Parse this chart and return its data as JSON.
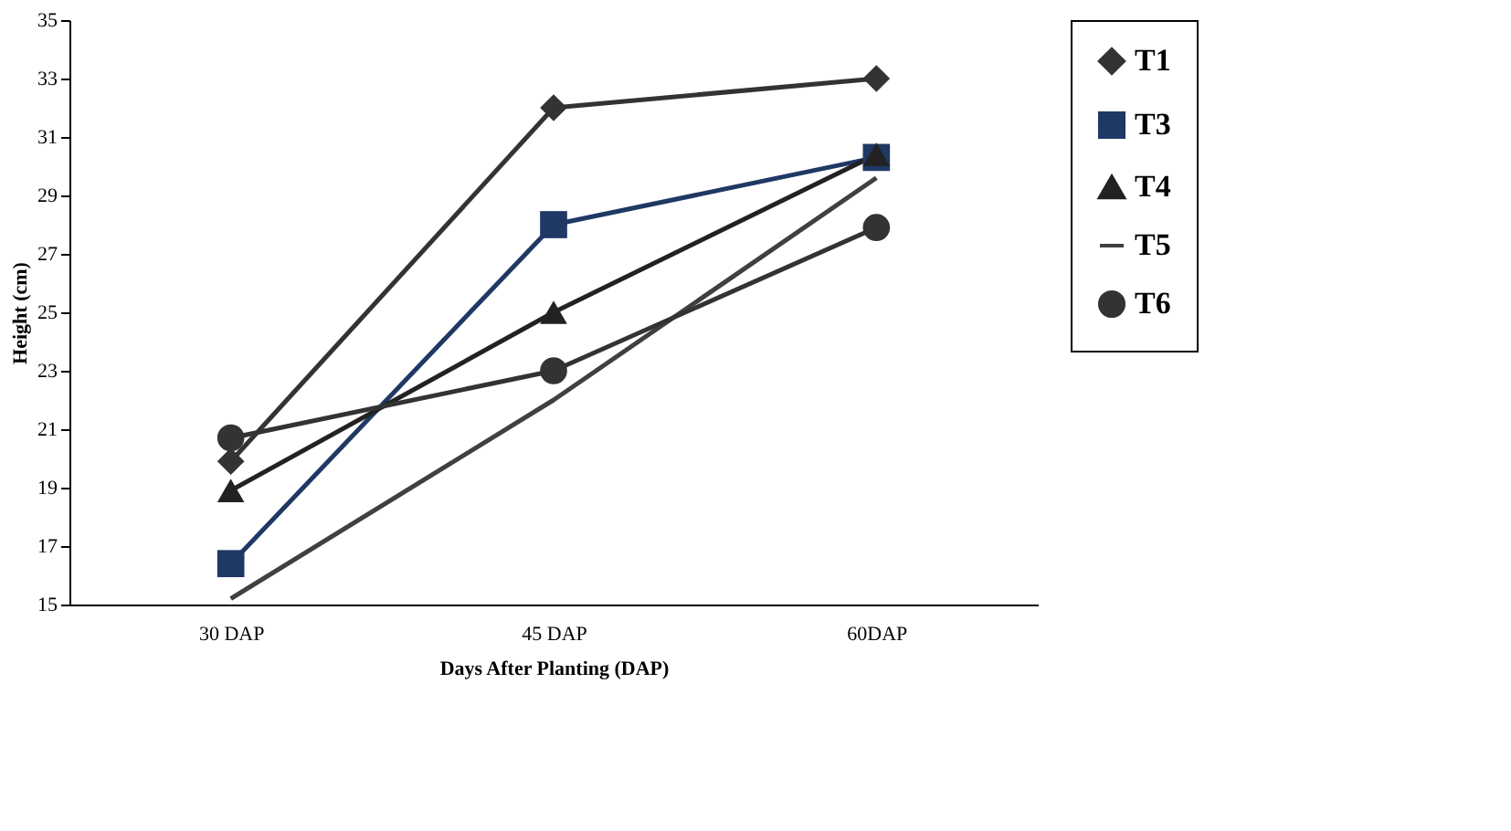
{
  "chart_data": {
    "type": "line",
    "xlabel": "Days After Planting (DAP)",
    "ylabel": "Height (cm)",
    "categories": [
      "30 DAP",
      "45 DAP",
      "60DAP"
    ],
    "series": [
      {
        "name": "T1",
        "color": "#333333",
        "marker": "diamond",
        "values": [
          19.9,
          32.0,
          33.0
        ]
      },
      {
        "name": "T3",
        "color": "#1f3864",
        "marker": "square",
        "values": [
          16.4,
          28.0,
          30.3
        ]
      },
      {
        "name": "T4",
        "color": "#222222",
        "marker": "triangle",
        "values": [
          18.9,
          25.0,
          30.4
        ]
      },
      {
        "name": "T5",
        "color": "#404040",
        "marker": "none",
        "values": [
          15.2,
          22.0,
          29.6
        ]
      },
      {
        "name": "T6",
        "color": "#333333",
        "marker": "circle",
        "values": [
          20.7,
          23.0,
          27.9
        ]
      }
    ],
    "ylim": [
      15,
      35
    ],
    "yticks": [
      15,
      17,
      19,
      21,
      23,
      25,
      27,
      29,
      31,
      33,
      35
    ],
    "grid": false,
    "legend": "right",
    "line_style": "solid"
  }
}
